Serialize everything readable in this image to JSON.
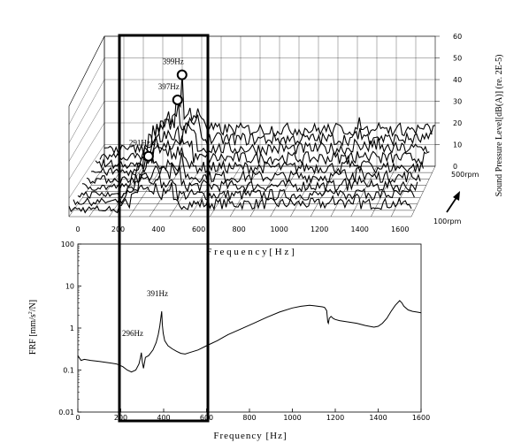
{
  "chart_data": [
    {
      "type": "waterfall",
      "xlabel": "F r e q u e n c y   [ H z ]",
      "zlabel": "Sound Pressure Level[dB(A)] (re. 2E-5)",
      "x_ticks": [
        0,
        200,
        400,
        600,
        800,
        1000,
        1200,
        1400,
        1600
      ],
      "z_ticks": [
        0,
        10,
        20,
        30,
        40,
        50,
        60
      ],
      "depth_labels": [
        "500rpm",
        "100rpm"
      ],
      "annotations": [
        "291Hz",
        "397Hz",
        "399Hz"
      ],
      "peaks": [
        {
          "label": "291Hz",
          "x": 291,
          "z": 15
        },
        {
          "label": "397Hz",
          "x": 397,
          "z": 35
        },
        {
          "label": "399Hz",
          "x": 399,
          "z": 43
        }
      ]
    },
    {
      "type": "line",
      "xlabel": "Frequency [Hz]",
      "ylabel_prefix": "FRF [mm/s",
      "ylabel_sup": "2",
      "ylabel_suffix": "/N]",
      "y_scale": "log",
      "x_ticks": [
        "0",
        "200",
        "400",
        "600",
        "800",
        "1000",
        "1200",
        "1400",
        "1600"
      ],
      "y_ticks": [
        "100",
        "10",
        "1",
        "0.1",
        "0.01"
      ],
      "xlim": [
        0,
        1600
      ],
      "ylim": [
        0.01,
        100
      ],
      "annotations": [
        "296Hz",
        "391Hz"
      ],
      "series": [
        {
          "x": [
            0,
            15,
            30,
            60,
            100,
            140,
            180,
            210,
            230,
            250,
            270,
            285,
            292,
            296,
            300,
            306,
            315,
            330,
            350,
            365,
            375,
            382,
            386,
            389,
            391,
            394,
            398,
            405,
            420,
            440,
            460,
            480,
            500,
            520,
            560,
            600,
            650,
            700,
            760,
            820,
            880,
            940,
            1000,
            1040,
            1080,
            1100,
            1120,
            1140,
            1150,
            1160,
            1165,
            1168,
            1172,
            1180,
            1190,
            1200,
            1220,
            1260,
            1300,
            1340,
            1380,
            1400,
            1420,
            1440,
            1460,
            1480,
            1500,
            1510,
            1520,
            1540,
            1560,
            1580,
            1600
          ],
          "y": [
            0.22,
            0.17,
            0.18,
            0.17,
            0.16,
            0.15,
            0.14,
            0.12,
            0.1,
            0.09,
            0.1,
            0.14,
            0.2,
            0.26,
            0.16,
            0.11,
            0.2,
            0.22,
            0.3,
            0.45,
            0.7,
            1.1,
            1.6,
            2.1,
            2.5,
            1.2,
            0.75,
            0.5,
            0.38,
            0.32,
            0.28,
            0.25,
            0.24,
            0.26,
            0.3,
            0.38,
            0.5,
            0.7,
            0.95,
            1.3,
            1.8,
            2.4,
            3.0,
            3.3,
            3.5,
            3.4,
            3.3,
            3.2,
            3.1,
            2.6,
            1.4,
            1.3,
            1.7,
            1.9,
            1.7,
            1.6,
            1.5,
            1.4,
            1.3,
            1.15,
            1.05,
            1.1,
            1.3,
            1.7,
            2.5,
            3.5,
            4.5,
            4.0,
            3.3,
            2.7,
            2.5,
            2.4,
            2.3
          ]
        }
      ]
    }
  ]
}
